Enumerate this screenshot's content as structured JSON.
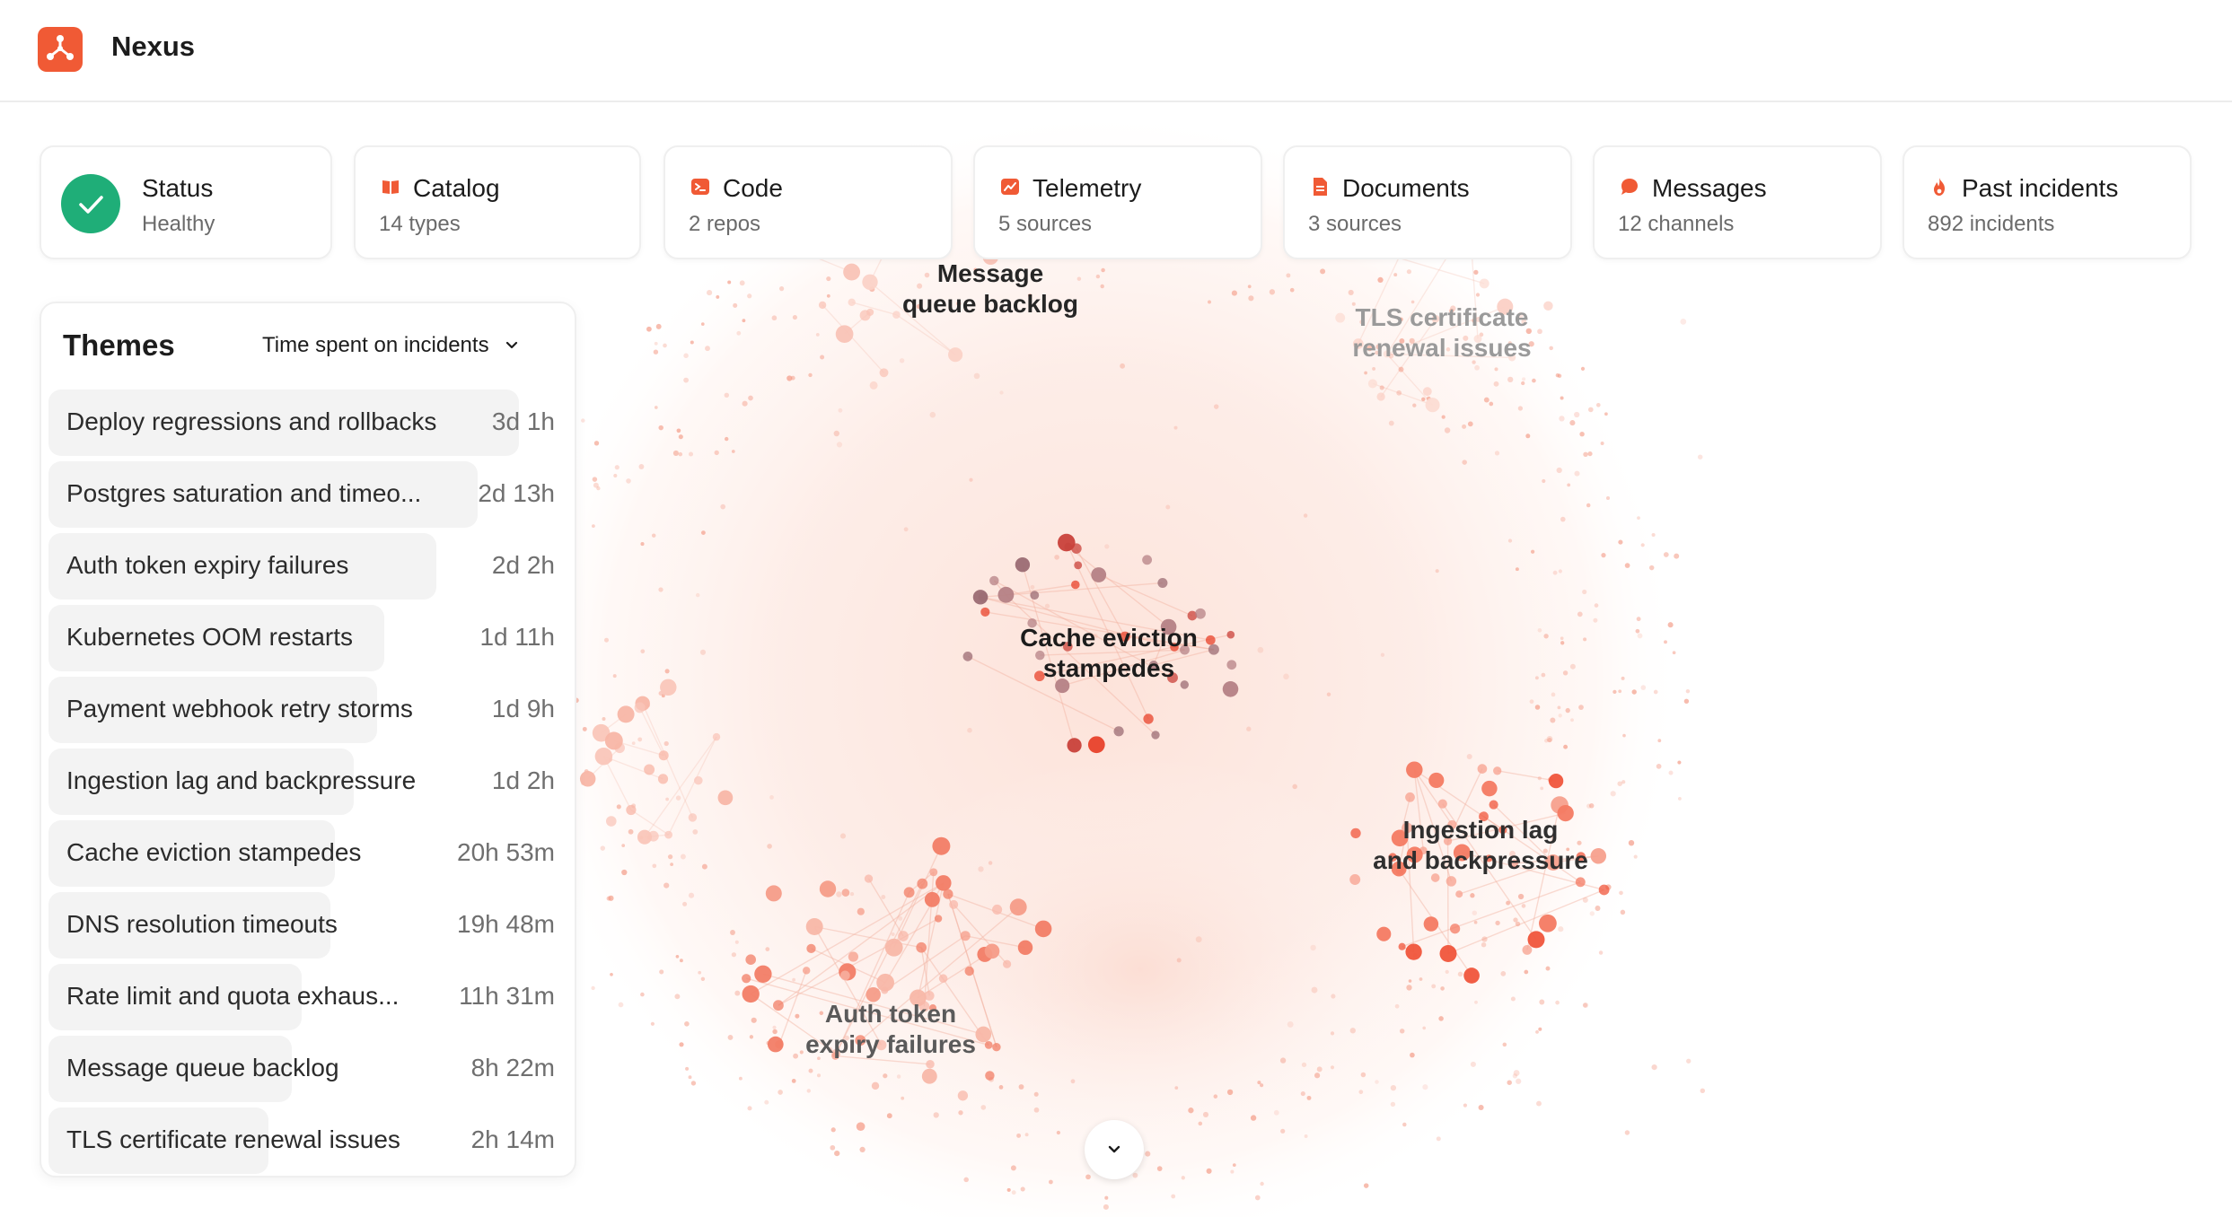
{
  "app": {
    "title": "Nexus"
  },
  "colors": {
    "accent": "#f05a35",
    "healthy": "#1fae78"
  },
  "sources": [
    {
      "id": "status",
      "title": "Status",
      "subtitle": "Healthy",
      "icon": "check-icon"
    },
    {
      "id": "catalog",
      "title": "Catalog",
      "subtitle": "14 types",
      "icon": "book-icon"
    },
    {
      "id": "code",
      "title": "Code",
      "subtitle": "2 repos",
      "icon": "terminal-icon"
    },
    {
      "id": "telemetry",
      "title": "Telemetry",
      "subtitle": "5 sources",
      "icon": "chart-icon"
    },
    {
      "id": "documents",
      "title": "Documents",
      "subtitle": "3 sources",
      "icon": "document-icon"
    },
    {
      "id": "messages",
      "title": "Messages",
      "subtitle": "12 channels",
      "icon": "chat-bubble-icon"
    },
    {
      "id": "past_incidents",
      "title": "Past incidents",
      "subtitle": "892 incidents",
      "icon": "flame-icon"
    }
  ],
  "themes": {
    "title": "Themes",
    "sort_label": "Time spent on incidents",
    "items": [
      {
        "name": "Deploy regressions and rollbacks",
        "value": "3d 1h",
        "share": 1.0
      },
      {
        "name": "Postgres saturation and timeo...",
        "value": "2d 13h",
        "share": 0.84
      },
      {
        "name": "Auth token expiry failures",
        "value": "2d 2h",
        "share": 0.68
      },
      {
        "name": "Kubernetes OOM restarts",
        "value": "1d 11h",
        "share": 0.48
      },
      {
        "name": "Payment webhook retry storms",
        "value": "1d 9h",
        "share": 0.45
      },
      {
        "name": "Ingestion lag and backpressure",
        "value": "1d 2h",
        "share": 0.36
      },
      {
        "name": "Cache eviction stampedes",
        "value": "20h 53m",
        "share": 0.29
      },
      {
        "name": "DNS resolution timeouts",
        "value": "19h 48m",
        "share": 0.27
      },
      {
        "name": "Rate limit and quota exhaus...",
        "value": "11h 31m",
        "share": 0.16
      },
      {
        "name": "Message queue backlog",
        "value": "8h 22m",
        "share": 0.12
      },
      {
        "name": "TLS certificate renewal issues",
        "value": "2h 14m",
        "share": 0.03
      }
    ]
  },
  "clusters": [
    {
      "line1": "Message",
      "line2": "queue backlog",
      "emphasis": 1.0
    },
    {
      "line1": "TLS certificate",
      "line2": "renewal issues",
      "emphasis": 0.3
    },
    {
      "line1": "Cache eviction",
      "line2": "stampedes",
      "emphasis": 1.0
    },
    {
      "line1": "Ingestion lag",
      "line2": "and backpressure",
      "emphasis": 0.85
    },
    {
      "line1": "Auth token",
      "line2": "expiry failures",
      "emphasis": 0.7
    }
  ]
}
